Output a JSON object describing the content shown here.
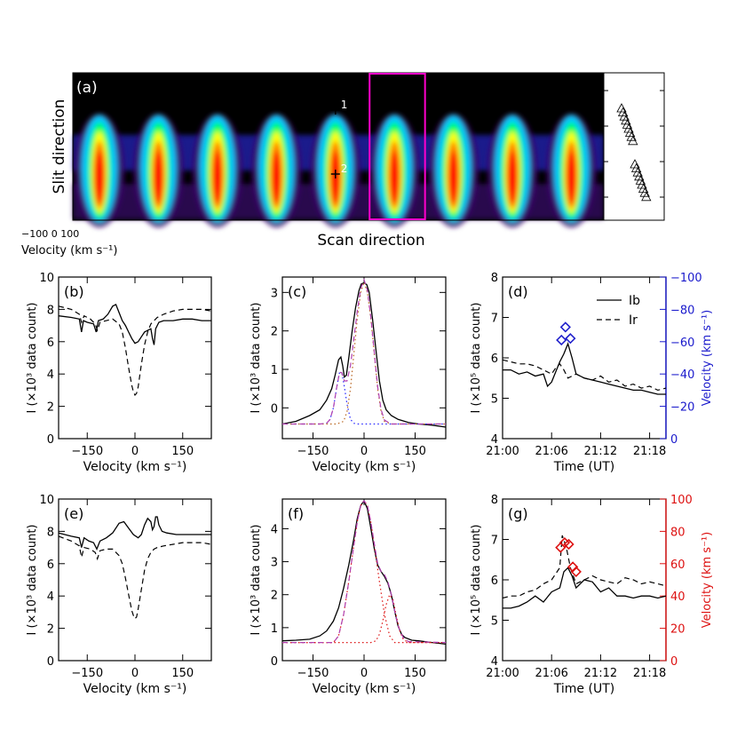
{
  "chart_data": [
    {
      "panel": "(a)",
      "type": "heatmap",
      "ylabel": "Slit direction",
      "xlabel": "Scan direction",
      "velocity_ticks": [
        "−100",
        "0",
        "100"
      ],
      "velocity_caption": "Velocity (km s⁻¹)",
      "n_scans": 9,
      "highlighted_scan": 6,
      "markers": [
        {
          "label": "1",
          "scan": 5
        },
        {
          "label": "2",
          "scan": 5
        }
      ],
      "colormap": [
        "#000000",
        "#3a0a6e",
        "#3030ff",
        "#00c8ff",
        "#00ff60",
        "#ffff00",
        "#ff8000",
        "#ff0000"
      ],
      "highlight_color": "#ff00cc"
    },
    {
      "panel": "(b)",
      "type": "line",
      "xlabel": "Velocity (km s⁻¹)",
      "ylabel": "I (×10³ data count)",
      "xlim": [
        -240,
        240
      ],
      "ylim": [
        0,
        10
      ],
      "xticks": [
        -150,
        0,
        150
      ],
      "yticks": [
        0,
        2,
        4,
        6,
        8,
        10
      ],
      "series": [
        {
          "style": "solid",
          "x": [
            -240,
            -200,
            -175,
            -168,
            -162,
            -150,
            -130,
            -122,
            -115,
            -100,
            -85,
            -70,
            -60,
            -50,
            -40,
            -30,
            -20,
            -10,
            0,
            10,
            20,
            30,
            40,
            50,
            55,
            60,
            65,
            75,
            90,
            120,
            150,
            180,
            210,
            240
          ],
          "y": [
            7.6,
            7.5,
            7.4,
            6.6,
            7.3,
            7.2,
            7.1,
            6.6,
            7.3,
            7.4,
            7.7,
            8.2,
            8.3,
            7.8,
            7.3,
            7.0,
            6.6,
            6.2,
            5.9,
            6.0,
            6.3,
            6.6,
            6.7,
            6.8,
            6.2,
            5.8,
            6.8,
            7.2,
            7.3,
            7.3,
            7.4,
            7.4,
            7.3,
            7.3
          ]
        },
        {
          "style": "dashed",
          "x": [
            -240,
            -200,
            -175,
            -168,
            -160,
            -140,
            -125,
            -118,
            -110,
            -90,
            -70,
            -50,
            -40,
            -30,
            -20,
            -10,
            -5,
            0,
            5,
            10,
            20,
            30,
            40,
            50,
            60,
            70,
            90,
            120,
            150,
            180,
            210,
            240
          ],
          "y": [
            8.2,
            8.0,
            7.7,
            7.2,
            7.6,
            7.4,
            7.1,
            6.7,
            7.2,
            7.3,
            7.4,
            7.1,
            6.6,
            5.6,
            4.4,
            3.3,
            2.9,
            2.7,
            2.8,
            3.2,
            4.6,
            5.8,
            6.6,
            7.1,
            7.3,
            7.5,
            7.7,
            7.9,
            8.0,
            8.0,
            8.0,
            7.9
          ]
        }
      ]
    },
    {
      "panel": "(c)",
      "type": "line",
      "xlabel": "Velocity (km s⁻¹)",
      "ylabel": "I (×10³ data count)",
      "xlim": [
        -240,
        240
      ],
      "ylim": [
        -0.8,
        3.4
      ],
      "xticks": [
        -150,
        0,
        150
      ],
      "yticks": [
        0,
        1,
        2,
        3
      ],
      "series": [
        {
          "style": "solid",
          "color": "#000000",
          "x": [
            -240,
            -200,
            -160,
            -130,
            -110,
            -95,
            -85,
            -75,
            -68,
            -63,
            -58,
            -52,
            -45,
            -35,
            -25,
            -15,
            -8,
            0,
            8,
            15,
            25,
            35,
            45,
            55,
            65,
            80,
            100,
            130,
            160,
            200,
            240
          ],
          "y": [
            -0.42,
            -0.35,
            -0.2,
            -0.05,
            0.2,
            0.5,
            0.85,
            1.25,
            1.32,
            1.1,
            0.8,
            0.85,
            1.3,
            2.0,
            2.6,
            3.05,
            3.22,
            3.25,
            3.2,
            3.0,
            2.3,
            1.5,
            0.7,
            0.2,
            -0.05,
            -0.2,
            -0.3,
            -0.38,
            -0.42,
            -0.45,
            -0.5
          ]
        },
        {
          "style": "dotted",
          "color": "#2222ff",
          "x": [
            -240,
            -130,
            -110,
            -100,
            -90,
            -80,
            -72,
            -65,
            -58,
            -50,
            -40,
            -30,
            -20,
            -10,
            0,
            240
          ],
          "y": [
            -0.42,
            -0.42,
            -0.4,
            -0.3,
            0.0,
            0.55,
            0.92,
            0.9,
            0.55,
            0.1,
            -0.3,
            -0.4,
            -0.42,
            -0.42,
            -0.42,
            -0.42
          ]
        },
        {
          "style": "dotted",
          "color": "#b8641e",
          "x": [
            -240,
            -80,
            -60,
            -50,
            -40,
            -30,
            -20,
            -10,
            0,
            10,
            20,
            30,
            40,
            50,
            60,
            80,
            240
          ],
          "y": [
            -0.42,
            -0.42,
            -0.35,
            -0.1,
            0.5,
            1.4,
            2.3,
            3.0,
            3.27,
            3.0,
            2.3,
            1.4,
            0.5,
            -0.1,
            -0.35,
            -0.42,
            -0.42
          ]
        },
        {
          "style": "dashed",
          "color": "#b040b0",
          "x": [
            -240,
            -130,
            -110,
            -100,
            -90,
            -80,
            -72,
            -66,
            -58,
            -50,
            -40,
            -30,
            -20,
            -10,
            0,
            10,
            20,
            30,
            40,
            50,
            60,
            80,
            240
          ],
          "y": [
            -0.42,
            -0.42,
            -0.4,
            -0.3,
            0.0,
            0.55,
            0.92,
            0.92,
            0.7,
            0.7,
            1.1,
            1.8,
            2.5,
            3.1,
            3.33,
            3.05,
            2.35,
            1.45,
            0.55,
            -0.05,
            -0.32,
            -0.42,
            -0.42
          ]
        }
      ]
    },
    {
      "panel": "(d)",
      "type": "line",
      "xlabel": "Time (UT)",
      "ylabel": "I (×10⁵ data count)",
      "y2label": "Velocity (km s⁻¹)",
      "xtick_labels": [
        "21:00",
        "21:06",
        "21:12",
        "21:18"
      ],
      "xlim": [
        0,
        20
      ],
      "ylim": [
        4,
        8
      ],
      "y2lim": [
        0,
        -100
      ],
      "xticks": [
        0,
        6,
        12,
        18
      ],
      "yticks": [
        4,
        5,
        6,
        7,
        8
      ],
      "y2ticks": [
        0,
        -20,
        -40,
        -60,
        -80,
        -100
      ],
      "legend": [
        "I_b",
        "I_r"
      ],
      "series": [
        {
          "name": "I_b",
          "style": "solid",
          "x": [
            0,
            1,
            2,
            3,
            4,
            5,
            5.5,
            6,
            7,
            7.5,
            8,
            8.5,
            9,
            10,
            11,
            12,
            13,
            14,
            15,
            16,
            17,
            18,
            19,
            20
          ],
          "y": [
            5.7,
            5.7,
            5.6,
            5.65,
            5.55,
            5.6,
            5.3,
            5.4,
            5.9,
            6.1,
            6.35,
            6.0,
            5.6,
            5.5,
            5.45,
            5.4,
            5.35,
            5.3,
            5.25,
            5.2,
            5.2,
            5.15,
            5.1,
            5.1
          ]
        },
        {
          "name": "I_r",
          "style": "dashed",
          "x": [
            0,
            1,
            2,
            3,
            4,
            5,
            6,
            6.5,
            7,
            7.5,
            8,
            9,
            10,
            11,
            12,
            13,
            14,
            15,
            16,
            17,
            18,
            19,
            20
          ],
          "y": [
            5.95,
            5.9,
            5.85,
            5.85,
            5.8,
            5.7,
            5.6,
            5.75,
            5.85,
            5.7,
            5.5,
            5.6,
            5.5,
            5.45,
            5.55,
            5.4,
            5.45,
            5.3,
            5.35,
            5.25,
            5.3,
            5.2,
            5.25
          ]
        },
        {
          "name": "Velocity",
          "style": "markers",
          "marker": "diamond",
          "color": "#2222cc",
          "x": [
            7.2,
            7.7,
            8.3
          ],
          "y": [
            -61,
            -69,
            -62
          ]
        }
      ],
      "y2color": "#1a1acc"
    },
    {
      "panel": "(e)",
      "type": "line",
      "xlabel": "Velocity (km s⁻¹)",
      "ylabel": "I (×10³ data count)",
      "xlim": [
        -240,
        240
      ],
      "ylim": [
        0,
        10
      ],
      "xticks": [
        -150,
        0,
        150
      ],
      "yticks": [
        0,
        2,
        4,
        6,
        8,
        10
      ],
      "series": [
        {
          "style": "solid",
          "x": [
            -240,
            -200,
            -175,
            -168,
            -160,
            -145,
            -130,
            -120,
            -110,
            -90,
            -70,
            -50,
            -35,
            -20,
            -5,
            10,
            20,
            30,
            40,
            50,
            55,
            60,
            65,
            70,
            75,
            85,
            100,
            130,
            160,
            200,
            240
          ],
          "y": [
            7.9,
            7.7,
            7.6,
            7.0,
            7.6,
            7.4,
            7.3,
            6.9,
            7.4,
            7.6,
            7.9,
            8.5,
            8.6,
            8.2,
            7.8,
            7.6,
            7.8,
            8.4,
            8.8,
            8.6,
            8.1,
            8.3,
            8.9,
            8.9,
            8.4,
            8.0,
            7.9,
            7.8,
            7.8,
            7.8,
            7.8
          ]
        },
        {
          "style": "dashed",
          "x": [
            -240,
            -200,
            -175,
            -168,
            -160,
            -140,
            -125,
            -118,
            -110,
            -90,
            -70,
            -50,
            -40,
            -30,
            -20,
            -10,
            -5,
            0,
            5,
            10,
            20,
            30,
            40,
            50,
            60,
            70,
            90,
            120,
            150,
            180,
            210,
            240
          ],
          "y": [
            7.7,
            7.4,
            7.1,
            6.4,
            7.0,
            6.9,
            6.7,
            6.3,
            6.8,
            6.9,
            6.9,
            6.5,
            6.0,
            5.1,
            4.1,
            3.1,
            2.8,
            2.6,
            2.7,
            3.2,
            4.4,
            5.6,
            6.3,
            6.7,
            6.9,
            7.0,
            7.1,
            7.2,
            7.3,
            7.3,
            7.3,
            7.2
          ]
        }
      ]
    },
    {
      "panel": "(f)",
      "type": "line",
      "xlabel": "Velocity (km s⁻¹)",
      "ylabel": "I (×10³ data count)",
      "xlim": [
        -240,
        240
      ],
      "ylim": [
        0,
        4.9
      ],
      "xticks": [
        -150,
        0,
        150
      ],
      "yticks": [
        0,
        1,
        2,
        3,
        4
      ],
      "series": [
        {
          "style": "solid",
          "color": "#000000",
          "x": [
            -240,
            -200,
            -160,
            -130,
            -110,
            -90,
            -75,
            -60,
            -45,
            -30,
            -20,
            -10,
            0,
            10,
            20,
            30,
            40,
            50,
            60,
            70,
            80,
            90,
            100,
            110,
            120,
            140,
            160,
            200,
            240
          ],
          "y": [
            0.6,
            0.62,
            0.65,
            0.75,
            0.9,
            1.2,
            1.6,
            2.2,
            2.9,
            3.7,
            4.3,
            4.7,
            4.85,
            4.6,
            4.0,
            3.4,
            2.9,
            2.7,
            2.55,
            2.35,
            2.0,
            1.5,
            1.05,
            0.8,
            0.7,
            0.62,
            0.6,
            0.55,
            0.5
          ]
        },
        {
          "style": "dotted",
          "color": "#dd1111",
          "x": [
            -240,
            -90,
            -75,
            -60,
            -45,
            -30,
            -20,
            -10,
            0,
            10,
            20,
            30,
            45,
            60,
            75,
            90,
            240
          ],
          "y": [
            0.55,
            0.55,
            0.75,
            1.4,
            2.4,
            3.5,
            4.2,
            4.7,
            4.85,
            4.7,
            4.2,
            3.5,
            2.4,
            1.4,
            0.75,
            0.55,
            0.55
          ]
        },
        {
          "style": "dotted",
          "color": "#dd1111",
          "x": [
            -240,
            20,
            35,
            45,
            55,
            65,
            75,
            85,
            95,
            105,
            115,
            130,
            240
          ],
          "y": [
            0.55,
            0.55,
            0.6,
            0.8,
            1.2,
            1.7,
            2.0,
            1.85,
            1.35,
            0.9,
            0.65,
            0.55,
            0.55
          ]
        },
        {
          "style": "dashed",
          "color": "#b040b0",
          "x": [
            -240,
            -90,
            -75,
            -60,
            -45,
            -30,
            -20,
            -10,
            0,
            10,
            20,
            30,
            40,
            50,
            60,
            70,
            80,
            90,
            100,
            115,
            130,
            240
          ],
          "y": [
            0.55,
            0.55,
            0.75,
            1.4,
            2.4,
            3.5,
            4.2,
            4.7,
            4.85,
            4.7,
            4.2,
            3.55,
            2.95,
            2.7,
            2.6,
            2.4,
            2.0,
            1.5,
            1.05,
            0.7,
            0.58,
            0.55
          ]
        }
      ]
    },
    {
      "panel": "(g)",
      "type": "line",
      "xlabel": "Time (UT)",
      "ylabel": "I (×10⁵ data count)",
      "y2label": "Velocity (km s⁻¹)",
      "xtick_labels": [
        "21:00",
        "21:06",
        "21:12",
        "21:18"
      ],
      "xlim": [
        0,
        20
      ],
      "ylim": [
        4,
        8
      ],
      "y2lim": [
        0,
        100
      ],
      "xticks": [
        0,
        6,
        12,
        18
      ],
      "yticks": [
        4,
        5,
        6,
        7,
        8
      ],
      "y2ticks": [
        0,
        20,
        40,
        60,
        80,
        100
      ],
      "series": [
        {
          "name": "I_b",
          "style": "solid",
          "x": [
            0,
            1,
            2,
            3,
            4,
            5,
            6,
            7,
            7.5,
            8,
            8.5,
            9,
            10,
            11,
            12,
            13,
            14,
            15,
            16,
            17,
            18,
            19,
            20
          ],
          "y": [
            5.3,
            5.3,
            5.35,
            5.45,
            5.6,
            5.45,
            5.7,
            5.8,
            6.2,
            6.3,
            6.1,
            5.8,
            6.0,
            5.95,
            5.7,
            5.8,
            5.6,
            5.6,
            5.55,
            5.6,
            5.6,
            5.55,
            5.6
          ]
        },
        {
          "name": "I_r",
          "style": "dashed",
          "x": [
            0,
            1,
            2,
            3,
            4,
            5,
            6,
            7,
            7.3,
            7.8,
            8.3,
            9,
            10,
            11,
            12,
            13,
            14,
            15,
            16,
            17,
            18,
            19,
            20
          ],
          "y": [
            5.55,
            5.6,
            5.6,
            5.7,
            5.75,
            5.9,
            6.0,
            6.3,
            7.1,
            6.8,
            6.3,
            5.9,
            6.0,
            6.1,
            6.0,
            5.95,
            5.9,
            6.05,
            6.0,
            5.9,
            5.95,
            5.9,
            5.85
          ]
        },
        {
          "name": "Velocity",
          "style": "markers",
          "marker": "diamond",
          "color": "#dd1111",
          "x": [
            7.1,
            7.6,
            8.1,
            8.6,
            9.0
          ],
          "y": [
            70,
            73,
            72,
            58,
            55
          ]
        }
      ],
      "y2color": "#dd1111"
    }
  ]
}
